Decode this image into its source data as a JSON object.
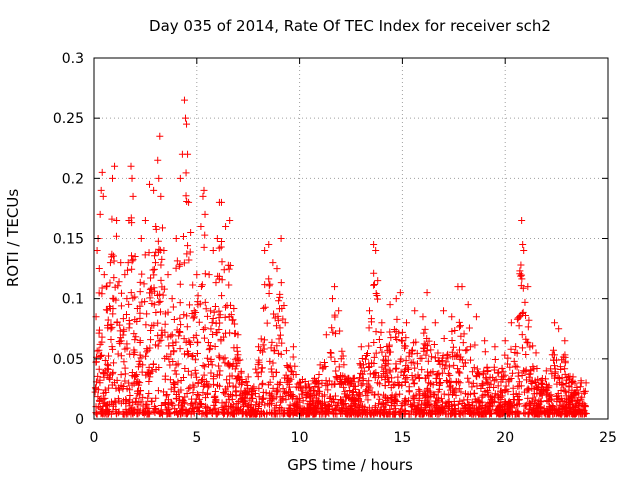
{
  "chart_data": {
    "type": "scatter",
    "title": "Day 035 of 2014, Rate Of TEC Index for receiver sch2",
    "xlabel": "GPS time / hours",
    "ylabel": "ROTI / TECUs",
    "xlim": [
      0,
      25
    ],
    "ylim": [
      0,
      0.3
    ],
    "xticks": [
      0,
      5,
      10,
      15,
      20,
      25
    ],
    "xtick_labels": [
      "0",
      "5",
      "10",
      "15",
      "20",
      "25"
    ],
    "yticks": [
      0,
      0.05,
      0.1,
      0.15,
      0.2,
      0.25,
      0.3
    ],
    "ytick_labels": [
      "0",
      "0.05",
      "0.1",
      "0.15",
      "0.2",
      "0.25",
      "0.3"
    ],
    "grid": true,
    "marker": "plus",
    "color": "#ff0000",
    "series": [
      {
        "name": "ROTI",
        "points": [
          [
            0.1,
            0.085
          ],
          [
            0.15,
            0.14
          ],
          [
            0.2,
            0.15
          ],
          [
            0.3,
            0.17
          ],
          [
            0.35,
            0.19
          ],
          [
            0.4,
            0.205
          ],
          [
            0.45,
            0.185
          ],
          [
            0.5,
            0.12
          ],
          [
            0.6,
            0.11
          ],
          [
            0.8,
            0.13
          ],
          [
            0.9,
            0.2
          ],
          [
            1.0,
            0.21
          ],
          [
            1.1,
            0.165
          ],
          [
            1.3,
            0.13
          ],
          [
            1.5,
            0.12
          ],
          [
            1.6,
            0.1
          ],
          [
            1.7,
            0.165
          ],
          [
            1.8,
            0.21
          ],
          [
            1.85,
            0.2
          ],
          [
            1.9,
            0.185
          ],
          [
            2.0,
            0.135
          ],
          [
            2.3,
            0.15
          ],
          [
            2.5,
            0.165
          ],
          [
            2.7,
            0.195
          ],
          [
            2.9,
            0.19
          ],
          [
            3.0,
            0.16
          ],
          [
            3.1,
            0.215
          ],
          [
            3.15,
            0.2
          ],
          [
            3.2,
            0.235
          ],
          [
            3.25,
            0.185
          ],
          [
            3.4,
            0.14
          ],
          [
            3.6,
            0.12
          ],
          [
            3.8,
            0.1
          ],
          [
            4.0,
            0.15
          ],
          [
            4.2,
            0.2
          ],
          [
            4.3,
            0.22
          ],
          [
            4.4,
            0.265
          ],
          [
            4.45,
            0.25
          ],
          [
            4.5,
            0.245
          ],
          [
            4.55,
            0.22
          ],
          [
            4.6,
            0.18
          ],
          [
            4.7,
            0.155
          ],
          [
            5.0,
            0.12
          ],
          [
            5.2,
            0.16
          ],
          [
            5.3,
            0.185
          ],
          [
            5.35,
            0.19
          ],
          [
            5.4,
            0.17
          ],
          [
            5.6,
            0.12
          ],
          [
            5.8,
            0.14
          ],
          [
            6.0,
            0.15
          ],
          [
            6.1,
            0.18
          ],
          [
            6.2,
            0.18
          ],
          [
            6.4,
            0.16
          ],
          [
            6.6,
            0.165
          ],
          [
            7.0,
            0.07
          ],
          [
            7.5,
            0.035
          ],
          [
            8.0,
            0.06
          ],
          [
            8.3,
            0.14
          ],
          [
            8.5,
            0.145
          ],
          [
            8.7,
            0.13
          ],
          [
            8.9,
            0.125
          ],
          [
            9.1,
            0.15
          ],
          [
            9.3,
            0.08
          ],
          [
            9.7,
            0.06
          ],
          [
            10.0,
            0.03
          ],
          [
            10.5,
            0.025
          ],
          [
            11.0,
            0.045
          ],
          [
            11.3,
            0.07
          ],
          [
            11.6,
            0.1
          ],
          [
            11.7,
            0.11
          ],
          [
            11.9,
            0.09
          ],
          [
            12.2,
            0.035
          ],
          [
            12.6,
            0.02
          ],
          [
            13.0,
            0.06
          ],
          [
            13.4,
            0.09
          ],
          [
            13.6,
            0.145
          ],
          [
            13.7,
            0.14
          ],
          [
            13.8,
            0.115
          ],
          [
            14.0,
            0.08
          ],
          [
            14.4,
            0.095
          ],
          [
            14.7,
            0.1
          ],
          [
            14.9,
            0.105
          ],
          [
            15.2,
            0.08
          ],
          [
            15.6,
            0.09
          ],
          [
            16.0,
            0.085
          ],
          [
            16.2,
            0.105
          ],
          [
            16.6,
            0.08
          ],
          [
            17.0,
            0.09
          ],
          [
            17.4,
            0.085
          ],
          [
            17.7,
            0.11
          ],
          [
            17.9,
            0.11
          ],
          [
            18.2,
            0.095
          ],
          [
            18.6,
            0.085
          ],
          [
            19.0,
            0.065
          ],
          [
            19.5,
            0.06
          ],
          [
            20.0,
            0.065
          ],
          [
            20.3,
            0.08
          ],
          [
            20.7,
            0.085
          ],
          [
            20.8,
            0.165
          ],
          [
            20.85,
            0.145
          ],
          [
            20.9,
            0.14
          ],
          [
            21.1,
            0.11
          ],
          [
            21.5,
            0.055
          ],
          [
            22.0,
            0.04
          ],
          [
            22.4,
            0.08
          ],
          [
            22.6,
            0.075
          ],
          [
            22.9,
            0.065
          ],
          [
            23.3,
            0.035
          ],
          [
            23.7,
            0.03
          ]
        ]
      }
    ]
  }
}
